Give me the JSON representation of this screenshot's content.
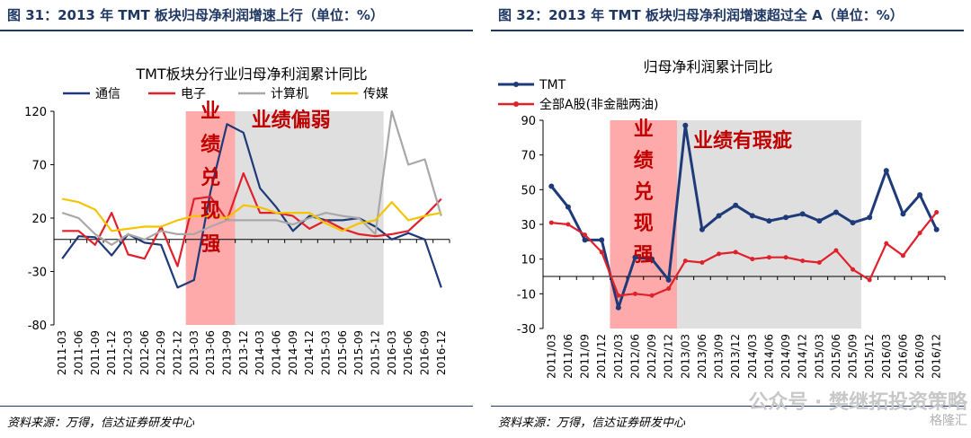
{
  "figures": [
    {
      "figure_title": "图 31：2013 年 TMT 板块归母净利润增速上行（单位：%）",
      "source": "资料来源：万得，信达证券研发中心",
      "chart_data": {
        "type": "line",
        "title": "TMT板块分行业归母净利润累计同比",
        "ylim": [
          -80,
          120
        ],
        "yticks": [
          -80,
          -30,
          20,
          70,
          120
        ],
        "grid": false,
        "legend_position": "top",
        "categories": [
          "2011-03",
          "2011-06",
          "2011-09",
          "2011-12",
          "2012-03",
          "2012-06",
          "2012-09",
          "2012-12",
          "2013-03",
          "2013-06",
          "2013-09",
          "2013-12",
          "2014-03",
          "2014-06",
          "2014-09",
          "2014-12",
          "2015-03",
          "2015-06",
          "2015-09",
          "2015-12",
          "2016-03",
          "2016-06",
          "2016-09",
          "2016-12"
        ],
        "xtick_labels": [
          "2011-03",
          "2011-06",
          "2011-09",
          "2011-12",
          "2012-03",
          "2012-06",
          "2012-09",
          "2012-12",
          "2013-03",
          "2013-06",
          "2013-09",
          "2013-12",
          "2014-03",
          "2014-06",
          "2014-09",
          "2014-12",
          "2015-03",
          "2015-06",
          "2015-09",
          "2015-12",
          "2016-03",
          "2016-06",
          "2016-09",
          "2016-12"
        ],
        "series": [
          {
            "name": "通信",
            "color": "#1f3a78",
            "values": [
              -18,
              3,
              2,
              -15,
              5,
              -3,
              -5,
              -45,
              -38,
              45,
              108,
              100,
              48,
              30,
              8,
              22,
              18,
              18,
              20,
              12,
              0,
              6,
              0,
              -45
            ]
          },
          {
            "name": "电子",
            "color": "#e0202a",
            "values": [
              8,
              8,
              -5,
              25,
              -14,
              -18,
              12,
              -25,
              38,
              40,
              18,
              62,
              25,
              25,
              22,
              10,
              18,
              10,
              5,
              3,
              5,
              8,
              22,
              38
            ]
          },
          {
            "name": "计算机",
            "color": "#a8a8a8",
            "values": [
              25,
              20,
              5,
              -5,
              5,
              0,
              8,
              5,
              5,
              12,
              18,
              18,
              18,
              18,
              14,
              20,
              25,
              22,
              20,
              5,
              120,
              70,
              75,
              22
            ]
          },
          {
            "name": "传媒",
            "color": "#f5c400",
            "values": [
              38,
              35,
              28,
              8,
              10,
              12,
              12,
              18,
              22,
              22,
              20,
              32,
              30,
              25,
              25,
              25,
              15,
              8,
              15,
              18,
              35,
              18,
              22,
              25
            ]
          }
        ],
        "annotations": [
          {
            "text": "业绩兑现强",
            "vertical": true,
            "color": "#c00000",
            "band": [
              7.5,
              10.5
            ],
            "band_color": "#ff9b9b"
          },
          {
            "text": "业绩偏弱",
            "vertical": false,
            "color": "#c00000",
            "band": [
              10.5,
              19.5
            ],
            "band_color": "#d9d9d9"
          }
        ]
      }
    },
    {
      "figure_title": "图 32：2013 年 TMT 板块归母净利润增速超过全 A（单位：%）",
      "source": "资料来源：万得，信达证券研发中心",
      "chart_data": {
        "type": "line",
        "title": "归母净利润累计同比",
        "ylim": [
          -30,
          90
        ],
        "yticks": [
          -30,
          -10,
          10,
          30,
          50,
          70,
          90
        ],
        "grid": false,
        "legend_position": "top-left",
        "categories": [
          "2011/03",
          "2011/06",
          "2011/09",
          "2011/12",
          "2012/03",
          "2012/06",
          "2012/09",
          "2012/12",
          "2013/03",
          "2013/06",
          "2013/09",
          "2013/12",
          "2014/03",
          "2014/06",
          "2014/09",
          "2014/12",
          "2015/03",
          "2015/06",
          "2015/09",
          "2015/12",
          "2016/03",
          "2016/06",
          "2016/09",
          "2016/12"
        ],
        "xtick_labels": [
          "2011/03",
          "2011/06",
          "2011/09",
          "2011/12",
          "2012/03",
          "2012/06",
          "2012/09",
          "2012/12",
          "2013/03",
          "2013/06",
          "2013/09",
          "2013/12",
          "2014/03",
          "2014/06",
          "2014/09",
          "2014/12",
          "2015/03",
          "2015/06",
          "2015/09",
          "2015/12",
          "2016/03",
          "2016/06",
          "2016/09",
          "2016/12"
        ],
        "series": [
          {
            "name": "TMT",
            "color": "#1f3a78",
            "values": [
              52,
              40,
              21,
              21,
              -18,
              11,
              10,
              -2,
              87,
              27,
              35,
              41,
              35,
              32,
              34,
              36,
              32,
              37,
              31,
              34,
              61,
              36,
              47,
              27
            ]
          },
          {
            "name": "全部A股(非金融两油)",
            "color": "#e0202a",
            "values": [
              31,
              30,
              24,
              14,
              -11,
              -10,
              -11,
              -7,
              9,
              8,
              13,
              14,
              10,
              11,
              11,
              9,
              8,
              15,
              4,
              -2,
              19,
              12,
              25,
              37
            ]
          }
        ],
        "annotations": [
          {
            "text": "业绩兑现强",
            "vertical": true,
            "color": "#c00000",
            "band": [
              3.5,
              7.5
            ],
            "band_color": "#ff9b9b"
          },
          {
            "text": "业绩有瑕疵",
            "vertical": false,
            "color": "#c00000",
            "band": [
              7.5,
              18.5
            ],
            "band_color": "#d9d9d9"
          }
        ]
      }
    }
  ],
  "watermark": "公众号 · 樊继拓投资策略",
  "watermark_logo": "格隆汇"
}
